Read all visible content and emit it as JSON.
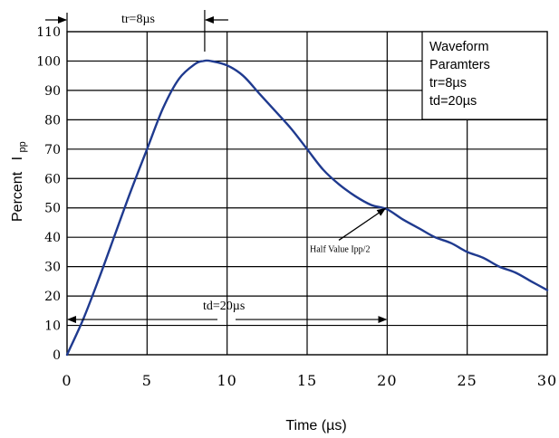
{
  "chart_data": {
    "type": "line",
    "xlabel": "Time (µs)",
    "ylabel_main": "Percent",
    "ylabel_symbol": "I",
    "ylabel_sub": "pp",
    "xlim": [
      0,
      30
    ],
    "ylim": [
      0,
      110
    ],
    "x_ticks": [
      0,
      5,
      10,
      15,
      20,
      25,
      30
    ],
    "y_ticks": [
      0,
      10,
      20,
      30,
      40,
      50,
      60,
      70,
      80,
      90,
      100,
      110
    ],
    "grid": true,
    "series": [
      {
        "color": "#1f3a8f",
        "points": [
          [
            0,
            0
          ],
          [
            1,
            12
          ],
          [
            2,
            26
          ],
          [
            3,
            41
          ],
          [
            4,
            56
          ],
          [
            5,
            70
          ],
          [
            6,
            84
          ],
          [
            7,
            94
          ],
          [
            8,
            99
          ],
          [
            8.5,
            100
          ],
          [
            9,
            100
          ],
          [
            10,
            98.5
          ],
          [
            11,
            95
          ],
          [
            12,
            89
          ],
          [
            13,
            83
          ],
          [
            14,
            77
          ],
          [
            15,
            70
          ],
          [
            16,
            63
          ],
          [
            17,
            58
          ],
          [
            18,
            54
          ],
          [
            19,
            51
          ],
          [
            20,
            49.5
          ],
          [
            21,
            46
          ],
          [
            22,
            43
          ],
          [
            23,
            40
          ],
          [
            24,
            38
          ],
          [
            25,
            35
          ],
          [
            26,
            33
          ],
          [
            27,
            30
          ],
          [
            28,
            28
          ],
          [
            29,
            25
          ],
          [
            30,
            22
          ]
        ]
      }
    ],
    "annotations": {
      "tr_label": "tr=8µs",
      "td_label": "td=20µs",
      "half_value_label": "Half Value Ipp/2"
    },
    "legend": {
      "placement": "top-right",
      "lines": [
        "Waveform",
        "Paramters",
        "tr=8µs",
        "td=20µs"
      ]
    }
  }
}
